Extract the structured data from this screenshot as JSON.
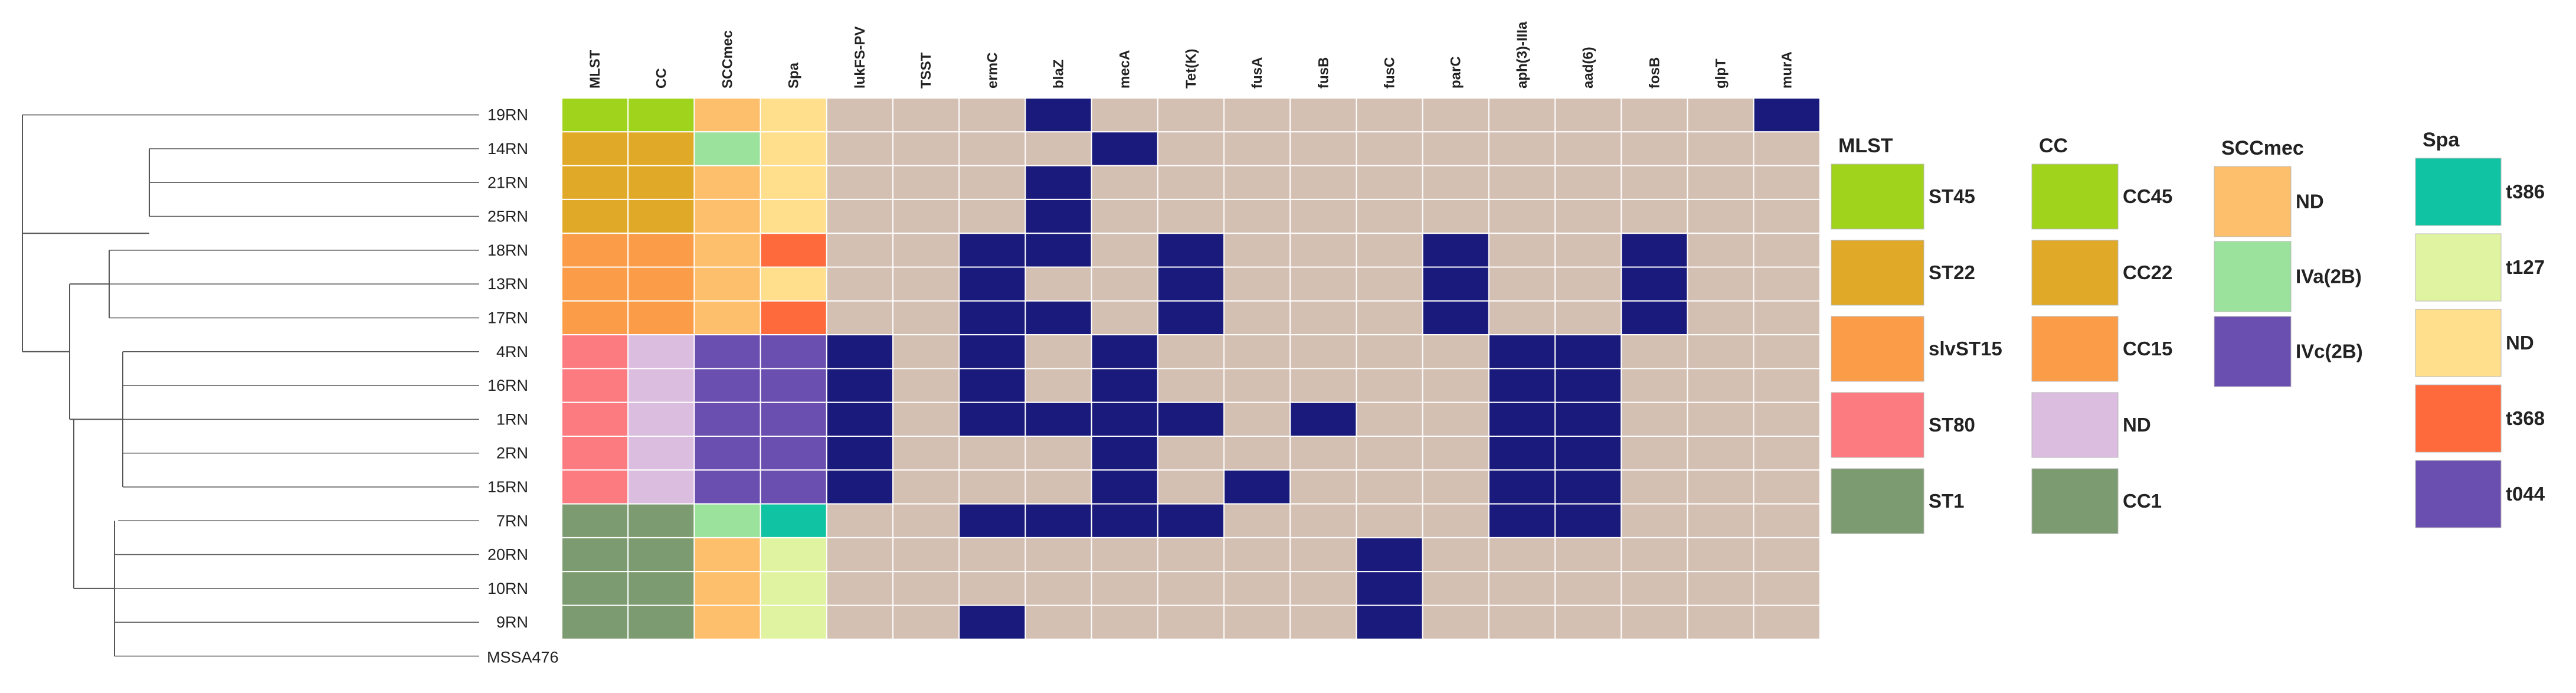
{
  "columns": [
    "MLST",
    "CC",
    "SCCmec",
    "Spa",
    "lukFS-PV",
    "TSST",
    "ermC",
    "blaZ",
    "mecA",
    "Tet(K)",
    "fusA",
    "fusB",
    "fusC",
    "parC",
    "aph(3)-IIIa",
    "aad(6)",
    "fosB",
    "glpT",
    "murA"
  ],
  "rows": [
    {
      "name": "19RN",
      "types": [
        "ST45",
        "CC45",
        "ND",
        "ND"
      ],
      "genes": [
        0,
        0,
        0,
        1,
        0,
        0,
        0,
        0,
        0,
        0,
        0,
        0,
        0,
        0,
        1
      ]
    },
    {
      "name": "14RN",
      "types": [
        "ST22",
        "CC22",
        "IVa(2B)",
        "ND"
      ],
      "genes": [
        0,
        0,
        0,
        0,
        1,
        0,
        0,
        0,
        0,
        0,
        0,
        0,
        0,
        0,
        0
      ]
    },
    {
      "name": "21RN",
      "types": [
        "ST22",
        "CC22",
        "ND",
        "ND"
      ],
      "genes": [
        0,
        0,
        0,
        1,
        0,
        0,
        0,
        0,
        0,
        0,
        0,
        0,
        0,
        0,
        0
      ]
    },
    {
      "name": "25RN",
      "types": [
        "ST22",
        "CC22",
        "ND",
        "ND"
      ],
      "genes": [
        0,
        0,
        0,
        1,
        0,
        0,
        0,
        0,
        0,
        0,
        0,
        0,
        0,
        0,
        0
      ]
    },
    {
      "name": "18RN",
      "types": [
        "slvST15",
        "CC15",
        "ND",
        "t368"
      ],
      "genes": [
        0,
        0,
        1,
        1,
        0,
        1,
        0,
        0,
        0,
        1,
        0,
        0,
        1,
        0,
        0
      ]
    },
    {
      "name": "13RN",
      "types": [
        "slvST15",
        "CC15",
        "ND",
        "ND"
      ],
      "genes": [
        0,
        0,
        1,
        0,
        0,
        1,
        0,
        0,
        0,
        1,
        0,
        0,
        1,
        0,
        0
      ]
    },
    {
      "name": "17RN",
      "types": [
        "slvST15",
        "CC15",
        "ND",
        "t368"
      ],
      "genes": [
        0,
        0,
        1,
        1,
        0,
        1,
        0,
        0,
        0,
        1,
        0,
        0,
        1,
        0,
        0
      ]
    },
    {
      "name": "4RN",
      "types": [
        "ST80",
        "ND",
        "IVc(2B)",
        "t044"
      ],
      "genes": [
        1,
        0,
        1,
        0,
        1,
        0,
        0,
        0,
        0,
        0,
        1,
        1,
        0,
        0,
        0
      ]
    },
    {
      "name": "16RN",
      "types": [
        "ST80",
        "ND",
        "IVc(2B)",
        "t044"
      ],
      "genes": [
        1,
        0,
        1,
        0,
        1,
        0,
        0,
        0,
        0,
        0,
        1,
        1,
        0,
        0,
        0
      ]
    },
    {
      "name": "1RN",
      "types": [
        "ST80",
        "ND",
        "IVc(2B)",
        "t044"
      ],
      "genes": [
        1,
        0,
        1,
        1,
        1,
        1,
        0,
        1,
        0,
        0,
        1,
        1,
        0,
        0,
        0
      ]
    },
    {
      "name": "2RN",
      "types": [
        "ST80",
        "ND",
        "IVc(2B)",
        "t044"
      ],
      "genes": [
        1,
        0,
        0,
        0,
        1,
        0,
        0,
        0,
        0,
        0,
        1,
        1,
        0,
        0,
        0
      ]
    },
    {
      "name": "15RN",
      "types": [
        "ST80",
        "ND",
        "IVc(2B)",
        "t044"
      ],
      "genes": [
        1,
        0,
        0,
        0,
        1,
        0,
        1,
        0,
        0,
        0,
        1,
        1,
        0,
        0,
        0
      ]
    },
    {
      "name": "7RN",
      "types": [
        "ST1",
        "CC1",
        "IVa(2B)",
        "t386"
      ],
      "genes": [
        0,
        0,
        1,
        1,
        1,
        1,
        0,
        0,
        0,
        0,
        1,
        1,
        0,
        0,
        0
      ]
    },
    {
      "name": "20RN",
      "types": [
        "ST1",
        "CC1",
        "ND",
        "t127"
      ],
      "genes": [
        0,
        0,
        0,
        0,
        0,
        0,
        0,
        0,
        1,
        0,
        0,
        0,
        0,
        0,
        0
      ]
    },
    {
      "name": "10RN",
      "types": [
        "ST1",
        "CC1",
        "ND",
        "t127"
      ],
      "genes": [
        0,
        0,
        0,
        0,
        0,
        0,
        0,
        0,
        1,
        0,
        0,
        0,
        0,
        0,
        0
      ]
    },
    {
      "name": "9RN",
      "types": [
        "ST1",
        "CC1",
        "ND",
        "t127"
      ],
      "genes": [
        0,
        0,
        1,
        0,
        0,
        0,
        0,
        0,
        1,
        0,
        0,
        0,
        0,
        0,
        0
      ]
    }
  ],
  "reference_label": "MSSA476",
  "colors": {
    "absent": "#d4bfb3",
    "present": "#1a1a7c",
    "grid": "#ffffff",
    "tree": "#555555"
  },
  "legends": [
    {
      "title": "MLST",
      "items": [
        {
          "label": "ST45",
          "color": "#a0d31c"
        },
        {
          "label": "ST22",
          "color": "#e0aa28"
        },
        {
          "label": "slvST15",
          "color": "#fb9d48"
        },
        {
          "label": "ST80",
          "color": "#fb7b81"
        },
        {
          "label": "ST1",
          "color": "#7c9b70"
        }
      ]
    },
    {
      "title": "CC",
      "items": [
        {
          "label": "CC45",
          "color": "#a0d31c"
        },
        {
          "label": "CC22",
          "color": "#e0aa28"
        },
        {
          "label": "CC15",
          "color": "#fb9d48"
        },
        {
          "label": "ND",
          "color": "#dbbddf"
        },
        {
          "label": "CC1",
          "color": "#7c9b70"
        }
      ]
    },
    {
      "title": "SCCmec",
      "items": [
        {
          "label": "ND",
          "color": "#fdbf6c"
        },
        {
          "label": "IVa(2B)",
          "color": "#9be29c"
        },
        {
          "label": "IVc(2B)",
          "color": "#6b4fb0"
        }
      ]
    },
    {
      "title": "Spa",
      "items": [
        {
          "label": "t386",
          "color": "#10c3a2"
        },
        {
          "label": "t127",
          "color": "#e0f3a0"
        },
        {
          "label": "ND",
          "color": "#ffde8c"
        },
        {
          "label": "t368",
          "color": "#ff6a3c"
        },
        {
          "label": "t044",
          "color": "#6b4fb0"
        }
      ]
    }
  ]
}
